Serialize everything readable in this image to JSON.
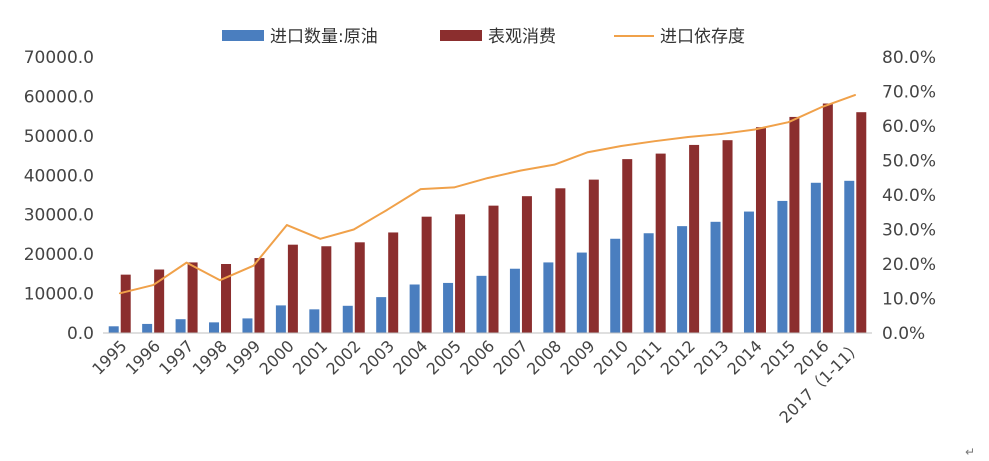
{
  "chart_data": {
    "type": "bar+line",
    "categories": [
      "1995",
      "1996",
      "1997",
      "1998",
      "1999",
      "2000",
      "2001",
      "2002",
      "2003",
      "2004",
      "2005",
      "2006",
      "2007",
      "2008",
      "2009",
      "2010",
      "2011",
      "2012",
      "2013",
      "2014",
      "2015",
      "2016",
      "2017（1-11）"
    ],
    "series": [
      {
        "name": "进口数量:原油",
        "type": "bar",
        "axis": "left",
        "color": "#4a7ebf",
        "values": [
          1700,
          2300,
          3500,
          2700,
          3700,
          7000,
          6000,
          6900,
          9100,
          12300,
          12700,
          14500,
          16300,
          17900,
          20400,
          23900,
          25300,
          27100,
          28200,
          30800,
          33500,
          38100,
          38600
        ]
      },
      {
        "name": "表观消费",
        "type": "bar",
        "axis": "right",
        "color": "#8b2e2e",
        "values": [
          14800,
          16100,
          17900,
          17500,
          19000,
          22400,
          22000,
          23000,
          25500,
          29500,
          30100,
          32300,
          34700,
          36700,
          38900,
          44100,
          45500,
          47700,
          48900,
          52200,
          54800,
          58200,
          56000
        ]
      },
      {
        "name": "进口依存度",
        "type": "line",
        "axis": "right",
        "color": "#f0a14a",
        "values": [
          11.5,
          13.9,
          20.4,
          15.3,
          19.5,
          31.3,
          27.3,
          30.0,
          35.7,
          41.7,
          42.2,
          44.9,
          47.1,
          48.8,
          52.4,
          54.2,
          55.6,
          56.8,
          57.7,
          59.0,
          61.1,
          65.5,
          69.0
        ]
      }
    ],
    "y_left": {
      "ylim": [
        0,
        70000
      ],
      "ticks": [
        "0.0",
        "10000.0",
        "20000.0",
        "30000.0",
        "40000.0",
        "50000.0",
        "60000.0",
        "70000.0"
      ]
    },
    "y_right": {
      "ylim": [
        0,
        80
      ],
      "ticks": [
        "0.0%",
        "10.0%",
        "20.0%",
        "30.0%",
        "40.0%",
        "50.0%",
        "60.0%",
        "70.0%",
        "80.0%"
      ]
    },
    "legend_position": "top",
    "grid": false
  },
  "page": {
    "paragraph_mark": "↵"
  }
}
